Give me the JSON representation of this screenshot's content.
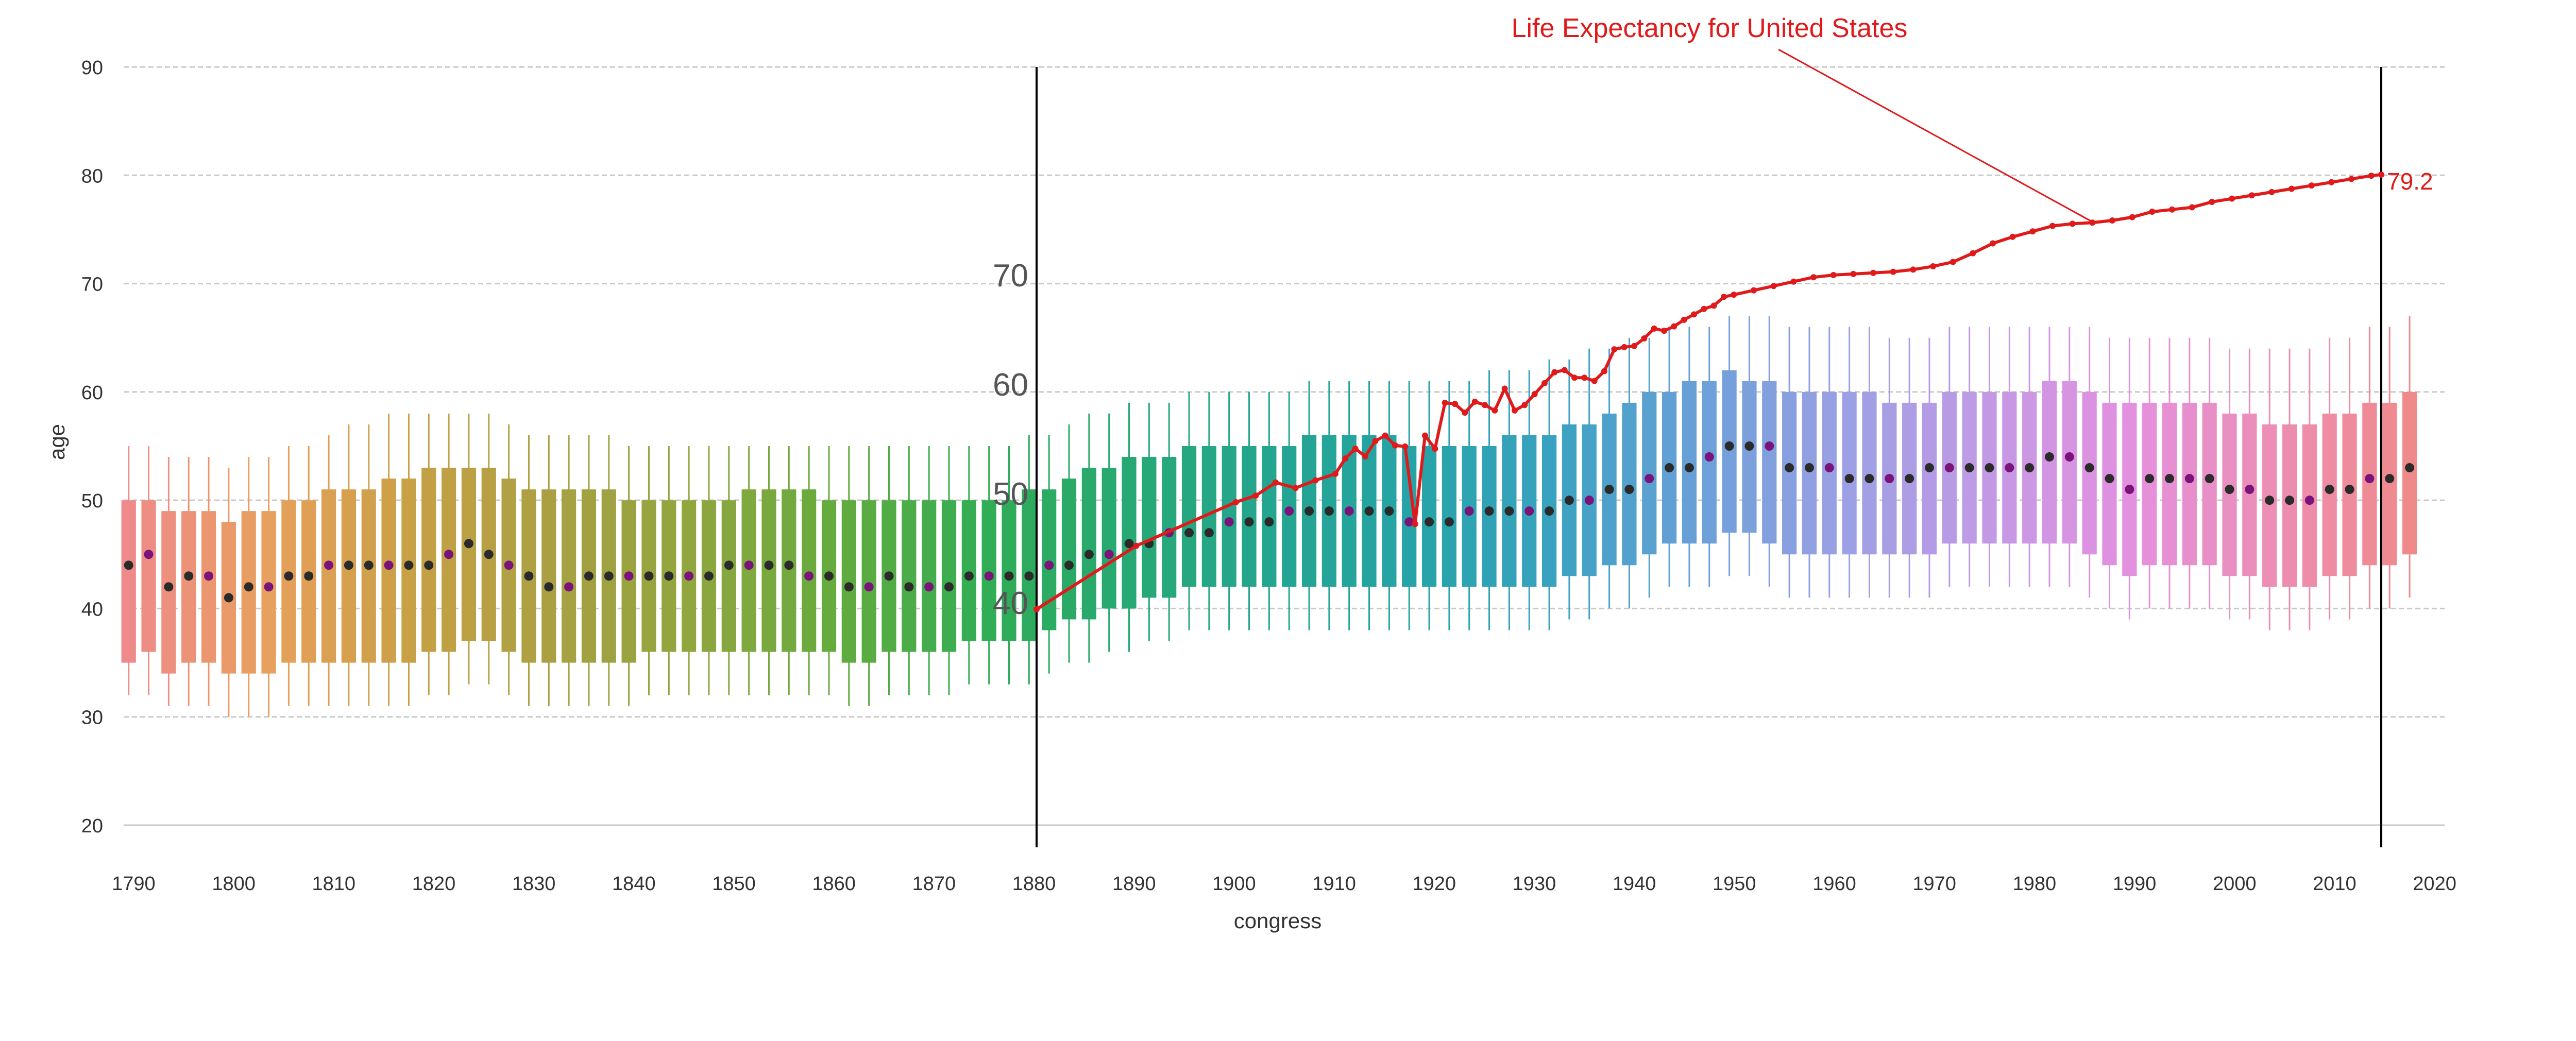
{
  "chart_data": {
    "type": "box",
    "title": "Life Expectancy for United States",
    "xlabel": "congress",
    "ylabel": "age",
    "grid": true,
    "y_axis": {
      "ticks": [
        20,
        30,
        40,
        50,
        60,
        70,
        80,
        90
      ],
      "range": [
        20,
        90
      ]
    },
    "x_axis": {
      "tick_labels": [
        "1790",
        "1800",
        "1810",
        "1820",
        "1830",
        "1840",
        "1850",
        "1860",
        "1870",
        "1880",
        "1890",
        "1900",
        "1910",
        "1920",
        "1930",
        "1940",
        "1950",
        "1960",
        "1970",
        "1980",
        "1990",
        "2000",
        "2010",
        "2020"
      ],
      "range": [
        1789,
        2021
      ]
    },
    "inset_axis": {
      "ticks": [
        40,
        50,
        60,
        70
      ]
    },
    "inset_bounds": [
      "1880",
      "2015"
    ],
    "congress_boxes": {
      "year_start": 1789,
      "step_years": 2,
      "count": 115,
      "median_age": [
        44,
        45,
        42,
        43,
        43,
        41,
        42,
        42,
        43,
        43,
        44,
        44,
        44,
        44,
        44,
        44,
        45,
        46,
        45,
        44,
        43,
        42,
        42,
        43,
        43,
        43,
        43,
        43,
        43,
        43,
        44,
        44,
        44,
        44,
        43,
        43,
        42,
        42,
        43,
        42,
        42,
        42,
        43,
        43,
        43,
        43,
        44,
        44,
        45,
        45,
        46,
        46,
        47,
        47,
        47,
        48,
        48,
        48,
        49,
        49,
        49,
        49,
        49,
        49,
        48,
        48,
        48,
        49,
        49,
        49,
        49,
        49,
        50,
        50,
        51,
        51,
        52,
        53,
        53,
        54,
        55,
        55,
        55,
        53,
        53,
        53,
        52,
        52,
        52,
        52,
        53,
        53,
        53,
        53,
        53,
        53,
        54,
        54,
        53,
        52,
        51,
        52,
        52,
        52,
        52,
        51,
        51,
        50,
        50,
        50,
        51,
        51,
        52,
        52,
        53
      ],
      "q1_age": [
        35,
        36,
        34,
        35,
        35,
        34,
        34,
        34,
        35,
        35,
        35,
        35,
        35,
        35,
        35,
        36,
        36,
        37,
        37,
        36,
        35,
        35,
        35,
        35,
        35,
        35,
        36,
        36,
        36,
        36,
        36,
        36,
        36,
        36,
        36,
        36,
        35,
        35,
        36,
        36,
        36,
        36,
        37,
        37,
        37,
        37,
        38,
        39,
        39,
        40,
        40,
        41,
        41,
        42,
        42,
        42,
        42,
        42,
        42,
        42,
        42,
        42,
        42,
        42,
        42,
        42,
        42,
        42,
        42,
        42,
        42,
        42,
        43,
        43,
        44,
        44,
        45,
        46,
        46,
        46,
        47,
        47,
        46,
        45,
        45,
        45,
        45,
        45,
        45,
        45,
        45,
        46,
        46,
        46,
        46,
        46,
        46,
        46,
        45,
        44,
        43,
        44,
        44,
        44,
        44,
        43,
        43,
        42,
        42,
        42,
        43,
        43,
        44,
        44,
        45
      ],
      "q3_age": [
        50,
        50,
        49,
        49,
        49,
        48,
        49,
        49,
        50,
        50,
        51,
        51,
        51,
        52,
        52,
        53,
        53,
        53,
        53,
        52,
        51,
        51,
        51,
        51,
        51,
        50,
        50,
        50,
        50,
        50,
        50,
        51,
        51,
        51,
        51,
        50,
        50,
        50,
        50,
        50,
        50,
        50,
        50,
        50,
        50,
        51,
        51,
        52,
        53,
        53,
        54,
        54,
        54,
        55,
        55,
        55,
        55,
        55,
        55,
        56,
        56,
        56,
        56,
        56,
        55,
        55,
        55,
        55,
        55,
        56,
        56,
        56,
        57,
        57,
        58,
        59,
        60,
        60,
        61,
        61,
        62,
        61,
        61,
        60,
        60,
        60,
        60,
        60,
        59,
        59,
        59,
        60,
        60,
        60,
        60,
        60,
        61,
        61,
        60,
        59,
        59,
        59,
        59,
        59,
        59,
        58,
        58,
        57,
        57,
        57,
        58,
        58,
        59,
        59,
        60
      ],
      "whisker_low": [
        32,
        32,
        31,
        31,
        31,
        30,
        30,
        30,
        31,
        31,
        31,
        31,
        31,
        31,
        31,
        32,
        32,
        33,
        33,
        32,
        31,
        31,
        31,
        31,
        31,
        31,
        32,
        32,
        32,
        32,
        32,
        32,
        32,
        32,
        32,
        32,
        31,
        31,
        32,
        32,
        32,
        32,
        33,
        33,
        33,
        33,
        34,
        35,
        35,
        36,
        36,
        37,
        37,
        38,
        38,
        38,
        38,
        38,
        38,
        38,
        38,
        38,
        38,
        38,
        38,
        38,
        38,
        38,
        38,
        38,
        38,
        38,
        39,
        39,
        40,
        40,
        41,
        42,
        42,
        42,
        43,
        43,
        42,
        41,
        41,
        41,
        41,
        41,
        41,
        41,
        41,
        42,
        42,
        42,
        42,
        42,
        42,
        42,
        41,
        40,
        39,
        40,
        40,
        40,
        40,
        39,
        39,
        38,
        38,
        38,
        39,
        39,
        40,
        40,
        41
      ],
      "whisker_high": [
        55,
        55,
        54,
        54,
        54,
        53,
        54,
        54,
        55,
        55,
        56,
        57,
        57,
        58,
        58,
        58,
        58,
        58,
        58,
        57,
        56,
        56,
        56,
        56,
        56,
        55,
        55,
        55,
        55,
        55,
        55,
        55,
        55,
        55,
        55,
        55,
        55,
        55,
        55,
        55,
        55,
        55,
        55,
        55,
        55,
        56,
        56,
        57,
        58,
        58,
        59,
        59,
        59,
        60,
        60,
        60,
        60,
        60,
        60,
        61,
        61,
        61,
        61,
        61,
        61,
        61,
        61,
        61,
        62,
        62,
        62,
        63,
        63,
        64,
        64,
        65,
        65,
        66,
        66,
        66,
        67,
        67,
        67,
        66,
        66,
        66,
        66,
        66,
        65,
        65,
        65,
        66,
        66,
        66,
        66,
        66,
        66,
        66,
        66,
        65,
        65,
        65,
        65,
        65,
        65,
        64,
        64,
        64,
        64,
        64,
        65,
        65,
        66,
        66,
        67
      ],
      "palette": [
        "#ef8a8a",
        "#e7a05c",
        "#c7a045",
        "#a8a043",
        "#8fa63f",
        "#62ab3e",
        "#31ad54",
        "#27a874",
        "#24a590",
        "#26a3a6",
        "#3aa2c1",
        "#6aa0d8",
        "#9aa0e4",
        "#c19ae5",
        "#e390e0",
        "#ec8eb6",
        "#ef8a8a"
      ]
    },
    "life_expectancy": {
      "name": "Life Expectancy for United States",
      "final_label": "79.2",
      "x": [
        1880,
        1890,
        1900,
        1902,
        1904,
        1906,
        1908,
        1910,
        1911,
        1912,
        1913,
        1914,
        1915,
        1916,
        1917,
        1918,
        1919,
        1920,
        1921,
        1922,
        1923,
        1924,
        1925,
        1926,
        1927,
        1928,
        1929,
        1930,
        1931,
        1932,
        1933,
        1934,
        1935,
        1936,
        1937,
        1938,
        1939,
        1940,
        1941,
        1942,
        1943,
        1944,
        1945,
        1946,
        1947,
        1948,
        1949,
        1950,
        1952,
        1954,
        1956,
        1958,
        1960,
        1962,
        1964,
        1966,
        1968,
        1970,
        1972,
        1974,
        1976,
        1978,
        1980,
        1982,
        1984,
        1986,
        1988,
        1990,
        1992,
        1994,
        1996,
        1998,
        2000,
        2002,
        2004,
        2006,
        2008,
        2010,
        2012,
        2014,
        2015
      ],
      "y": [
        39.4,
        45.2,
        49.2,
        49.8,
        51.0,
        50.5,
        51.2,
        51.8,
        53.2,
        54.1,
        53.4,
        54.8,
        55.3,
        54.4,
        54.3,
        47.2,
        55.3,
        54.1,
        58.3,
        58.2,
        57.4,
        58.4,
        58.1,
        57.6,
        59.6,
        57.6,
        58.1,
        59.1,
        60.1,
        61.1,
        61.3,
        60.6,
        60.6,
        60.3,
        61.2,
        63.2,
        63.4,
        63.5,
        64.2,
        65.1,
        64.9,
        65.3,
        65.9,
        66.4,
        66.9,
        67.2,
        68.0,
        68.2,
        68.6,
        69.0,
        69.4,
        69.8,
        70.0,
        70.1,
        70.2,
        70.3,
        70.5,
        70.8,
        71.2,
        72.0,
        72.9,
        73.5,
        74.0,
        74.5,
        74.7,
        74.8,
        75.0,
        75.3,
        75.8,
        76.0,
        76.2,
        76.7,
        77.0,
        77.3,
        77.6,
        77.9,
        78.2,
        78.5,
        78.8,
        79.1,
        79.2
      ]
    }
  }
}
